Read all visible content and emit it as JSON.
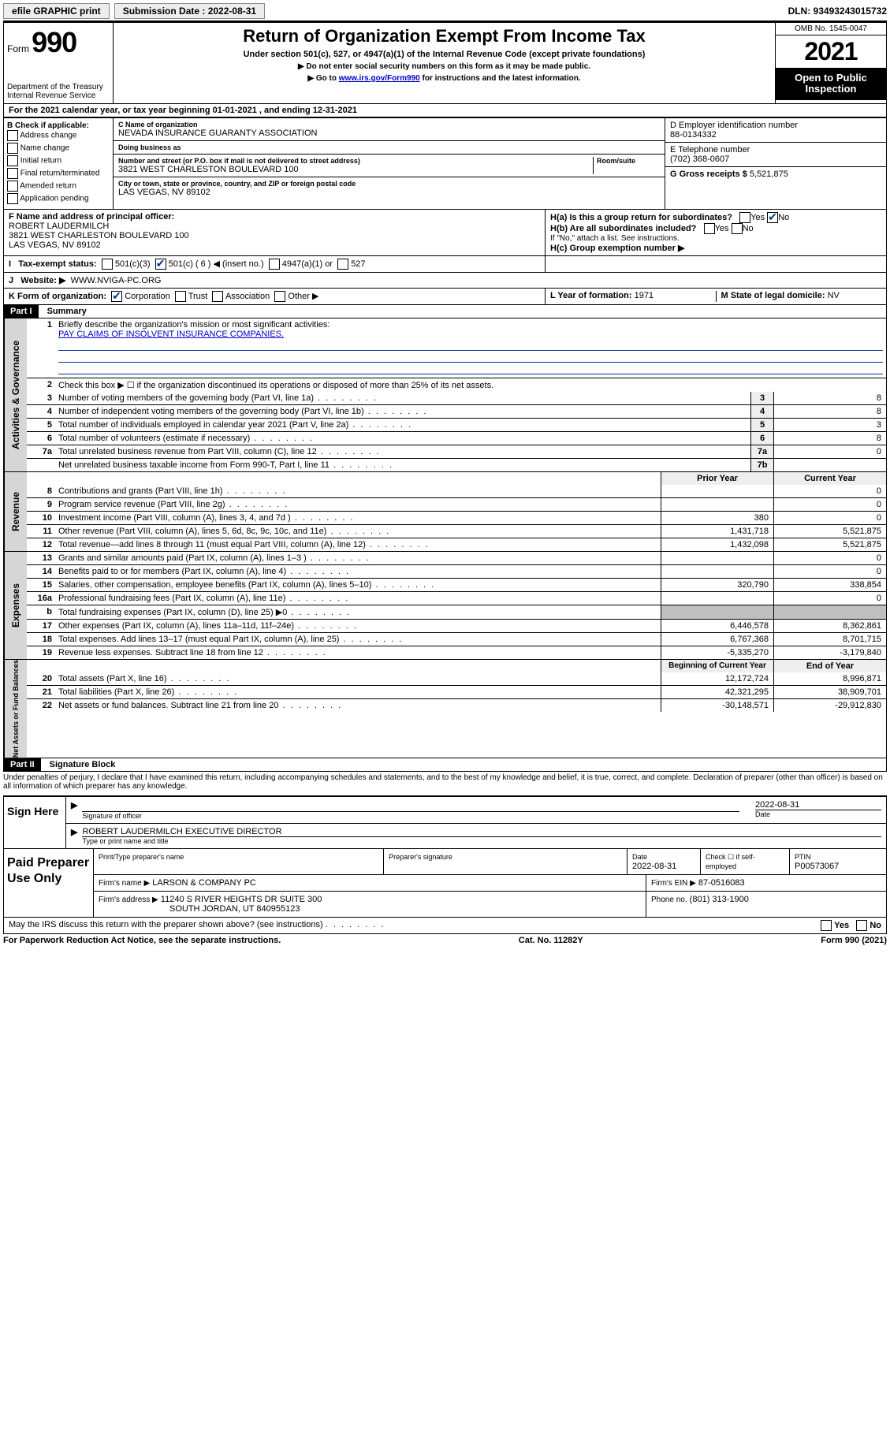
{
  "topbar": {
    "efile": "efile GRAPHIC print",
    "submission_label": "Submission Date : 2022-08-31",
    "dln": "DLN: 93493243015732"
  },
  "header": {
    "form_prefix": "Form",
    "form_no": "990",
    "dept": "Department of the Treasury\nInternal Revenue Service",
    "title": "Return of Organization Exempt From Income Tax",
    "subtitle": "Under section 501(c), 527, or 4947(a)(1) of the Internal Revenue Code (except private foundations)",
    "instr1": "▶ Do not enter social security numbers on this form as it may be made public.",
    "instr2_pre": "▶ Go to ",
    "instr2_link": "www.irs.gov/Form990",
    "instr2_post": " for instructions and the latest information.",
    "omb": "OMB No. 1545-0047",
    "year": "2021",
    "inspection": "Open to Public Inspection"
  },
  "sectionA": "For the 2021 calendar year, or tax year beginning 01-01-2021   , and ending 12-31-2021",
  "colB": {
    "hdr": "B Check if applicable:",
    "items": [
      "Address change",
      "Name change",
      "Initial return",
      "Final return/terminated",
      "Amended return",
      "Application pending"
    ]
  },
  "colC": {
    "name_lbl": "C Name of organization",
    "name": "NEVADA INSURANCE GUARANTY ASSOCIATION",
    "dba_lbl": "Doing business as",
    "dba": "",
    "addr_lbl": "Number and street (or P.O. box if mail is not delivered to street address)",
    "room_lbl": "Room/suite",
    "addr": "3821 WEST CHARLESTON BOULEVARD 100",
    "city_lbl": "City or town, state or province, country, and ZIP or foreign postal code",
    "city": "LAS VEGAS, NV  89102"
  },
  "colD": {
    "ein_lbl": "D Employer identification number",
    "ein": "88-0134332",
    "tel_lbl": "E Telephone number",
    "tel": "(702) 368-0607",
    "gross_lbl": "G Gross receipts $",
    "gross": "5,521,875"
  },
  "rowF": {
    "lbl": "F Name and address of principal officer:",
    "name": "ROBERT LAUDERMILCH",
    "addr": "3821 WEST CHARLESTON BOULEVARD 100",
    "city": "LAS VEGAS, NV  89102"
  },
  "rowH": {
    "ha": "H(a)  Is this a group return for subordinates?",
    "hb": "H(b)  Are all subordinates included?",
    "hb_note": "If \"No,\" attach a list. See instructions.",
    "hc": "H(c)  Group exemption number ▶",
    "yes": "Yes",
    "no": "No"
  },
  "rowI": {
    "lbl": "Tax-exempt status:",
    "opts": [
      "501(c)(3)",
      "501(c) ( 6 ) ◀ (insert no.)",
      "4947(a)(1) or",
      "527"
    ]
  },
  "rowJ": {
    "lbl": "Website: ▶",
    "val": "WWW.NVIGA-PC.ORG"
  },
  "rowK": {
    "lbl": "K Form of organization:",
    "opts": [
      "Corporation",
      "Trust",
      "Association",
      "Other ▶"
    ]
  },
  "rowL": {
    "lbl": "L Year of formation:",
    "val": "1971"
  },
  "rowM": {
    "lbl": "M State of legal domicile:",
    "val": "NV"
  },
  "part1": {
    "hdr": "Part I",
    "title": "Summary",
    "line1_lbl": "Briefly describe the organization's mission or most significant activities:",
    "line1_val": "PAY CLAIMS OF INSOLVENT INSURANCE COMPANIES.",
    "line2": "Check this box ▶ ☐  if the organization discontinued its operations or disposed of more than 25% of its net assets.",
    "gov_rows": [
      {
        "n": "3",
        "d": "Number of voting members of the governing body (Part VI, line 1a)",
        "b": "3",
        "v": "8"
      },
      {
        "n": "4",
        "d": "Number of independent voting members of the governing body (Part VI, line 1b)",
        "b": "4",
        "v": "8"
      },
      {
        "n": "5",
        "d": "Total number of individuals employed in calendar year 2021 (Part V, line 2a)",
        "b": "5",
        "v": "3"
      },
      {
        "n": "6",
        "d": "Total number of volunteers (estimate if necessary)",
        "b": "6",
        "v": "8"
      },
      {
        "n": "7a",
        "d": "Total unrelated business revenue from Part VIII, column (C), line 12",
        "b": "7a",
        "v": "0"
      },
      {
        "n": "",
        "d": "Net unrelated business taxable income from Form 990-T, Part I, line 11",
        "b": "7b",
        "v": ""
      }
    ],
    "col_prior": "Prior Year",
    "col_curr": "Current Year",
    "rev_rows": [
      {
        "n": "8",
        "d": "Contributions and grants (Part VIII, line 1h)",
        "p": "",
        "c": "0"
      },
      {
        "n": "9",
        "d": "Program service revenue (Part VIII, line 2g)",
        "p": "",
        "c": "0"
      },
      {
        "n": "10",
        "d": "Investment income (Part VIII, column (A), lines 3, 4, and 7d )",
        "p": "380",
        "c": "0"
      },
      {
        "n": "11",
        "d": "Other revenue (Part VIII, column (A), lines 5, 6d, 8c, 9c, 10c, and 11e)",
        "p": "1,431,718",
        "c": "5,521,875"
      },
      {
        "n": "12",
        "d": "Total revenue—add lines 8 through 11 (must equal Part VIII, column (A), line 12)",
        "p": "1,432,098",
        "c": "5,521,875"
      }
    ],
    "exp_rows": [
      {
        "n": "13",
        "d": "Grants and similar amounts paid (Part IX, column (A), lines 1–3 )",
        "p": "",
        "c": "0"
      },
      {
        "n": "14",
        "d": "Benefits paid to or for members (Part IX, column (A), line 4)",
        "p": "",
        "c": "0"
      },
      {
        "n": "15",
        "d": "Salaries, other compensation, employee benefits (Part IX, column (A), lines 5–10)",
        "p": "320,790",
        "c": "338,854"
      },
      {
        "n": "16a",
        "d": "Professional fundraising fees (Part IX, column (A), line 11e)",
        "p": "",
        "c": "0"
      },
      {
        "n": "b",
        "d": "Total fundraising expenses (Part IX, column (D), line 25) ▶0",
        "p": "",
        "c": "",
        "grey": true
      },
      {
        "n": "17",
        "d": "Other expenses (Part IX, column (A), lines 11a–11d, 11f–24e)",
        "p": "6,446,578",
        "c": "8,362,861"
      },
      {
        "n": "18",
        "d": "Total expenses. Add lines 13–17 (must equal Part IX, column (A), line 25)",
        "p": "6,767,368",
        "c": "8,701,715"
      },
      {
        "n": "19",
        "d": "Revenue less expenses. Subtract line 18 from line 12",
        "p": "-5,335,270",
        "c": "-3,179,840"
      }
    ],
    "col_beg": "Beginning of Current Year",
    "col_end": "End of Year",
    "na_rows": [
      {
        "n": "20",
        "d": "Total assets (Part X, line 16)",
        "p": "12,172,724",
        "c": "8,996,871"
      },
      {
        "n": "21",
        "d": "Total liabilities (Part X, line 26)",
        "p": "42,321,295",
        "c": "38,909,701"
      },
      {
        "n": "22",
        "d": "Net assets or fund balances. Subtract line 21 from line 20",
        "p": "-30,148,571",
        "c": "-29,912,830"
      }
    ]
  },
  "part2": {
    "hdr": "Part II",
    "title": "Signature Block",
    "penalty": "Under penalties of perjury, I declare that I have examined this return, including accompanying schedules and statements, and to the best of my knowledge and belief, it is true, correct, and complete. Declaration of preparer (other than officer) is based on all information of which preparer has any knowledge."
  },
  "sign": {
    "here": "Sign Here",
    "sig_of": "Signature of officer",
    "date_lbl": "Date",
    "date": "2022-08-31",
    "name": "ROBERT LAUDERMILCH  EXECUTIVE DIRECTOR",
    "name_lbl": "Type or print name and title"
  },
  "paid": {
    "hdr": "Paid Preparer Use Only",
    "r1": {
      "c1": "Print/Type preparer's name",
      "c2": "Preparer's signature",
      "c3": "Date",
      "c3v": "2022-08-31",
      "c4": "Check ☐ if self-employed",
      "c5": "PTIN",
      "c5v": "P00573067"
    },
    "r2": {
      "lbl": "Firm's name    ▶",
      "val": "LARSON & COMPANY PC",
      "ein_lbl": "Firm's EIN ▶",
      "ein": "87-0516083"
    },
    "r3": {
      "lbl": "Firm's address ▶",
      "val": "11240 S RIVER HEIGHTS DR SUITE 300",
      "val2": "SOUTH JORDAN, UT  840955123",
      "ph_lbl": "Phone no.",
      "ph": "(801) 313-1900"
    }
  },
  "may": {
    "q": "May the IRS discuss this return with the preparer shown above? (see instructions)",
    "yes": "Yes",
    "no": "No"
  },
  "footer": {
    "l": "For Paperwork Reduction Act Notice, see the separate instructions.",
    "c": "Cat. No. 11282Y",
    "r": "Form 990 (2021)"
  }
}
